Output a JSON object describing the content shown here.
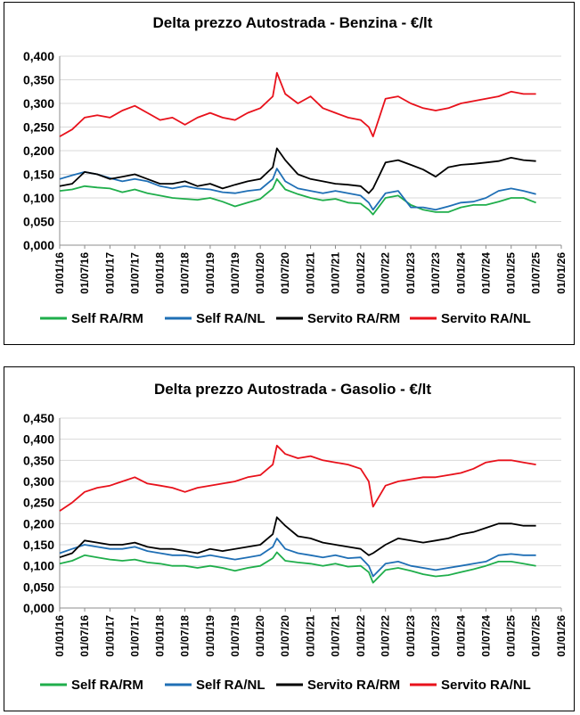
{
  "chart_data": [
    {
      "type": "line",
      "title": "Delta prezzo Autostrada - Benzina - €/lt",
      "xlabel": "",
      "ylabel": "",
      "ylim": [
        0,
        0.4
      ],
      "yticks": [
        "0,000",
        "0,050",
        "0,100",
        "0,150",
        "0,200",
        "0,250",
        "0,300",
        "0,350",
        "0,400"
      ],
      "xticks": [
        "01/01/16",
        "01/07/16",
        "01/01/17",
        "01/07/17",
        "01/01/18",
        "01/07/18",
        "01/01/19",
        "01/07/19",
        "01/01/20",
        "01/07/20",
        "01/01/21",
        "01/07/21",
        "01/01/22",
        "01/07/22",
        "01/01/23",
        "01/07/23",
        "01/01/24",
        "01/07/24",
        "01/01/25",
        "01/07/25",
        "01/01/26"
      ],
      "xlim": [
        "01/01/16",
        "01/01/26"
      ],
      "grid": "horizontal",
      "legend_position": "bottom",
      "x": [
        "01/01/16",
        "01/04/16",
        "01/07/16",
        "01/10/16",
        "01/01/17",
        "01/04/17",
        "01/07/17",
        "01/10/17",
        "01/01/18",
        "01/04/18",
        "01/07/18",
        "01/10/18",
        "01/01/19",
        "01/04/19",
        "01/07/19",
        "01/10/19",
        "01/01/20",
        "01/04/20",
        "01/05/20",
        "01/07/20",
        "01/10/20",
        "01/01/21",
        "01/04/21",
        "01/07/21",
        "01/10/21",
        "01/01/22",
        "01/03/22",
        "01/04/22",
        "01/07/22",
        "01/10/22",
        "01/01/23",
        "01/04/23",
        "01/07/23",
        "01/10/23",
        "01/01/24",
        "01/04/24",
        "01/07/24",
        "01/10/24",
        "01/01/25",
        "01/04/25",
        "01/07/25"
      ],
      "series": [
        {
          "name": "Self RA/RM",
          "color": "#1fae4b",
          "values": [
            0.115,
            0.118,
            0.125,
            0.122,
            0.12,
            0.112,
            0.118,
            0.11,
            0.105,
            0.1,
            0.098,
            0.096,
            0.1,
            0.092,
            0.082,
            0.09,
            0.098,
            0.12,
            0.14,
            0.118,
            0.108,
            0.1,
            0.095,
            0.098,
            0.09,
            0.088,
            0.075,
            0.065,
            0.1,
            0.105,
            0.085,
            0.075,
            0.07,
            0.07,
            0.08,
            0.085,
            0.085,
            0.092,
            0.1,
            0.1,
            0.09
          ]
        },
        {
          "name": "Self RA/NL",
          "color": "#1f6fb5",
          "values": [
            0.14,
            0.148,
            0.155,
            0.15,
            0.142,
            0.135,
            0.14,
            0.135,
            0.125,
            0.12,
            0.125,
            0.12,
            0.118,
            0.112,
            0.11,
            0.115,
            0.118,
            0.14,
            0.162,
            0.135,
            0.12,
            0.115,
            0.11,
            0.115,
            0.11,
            0.105,
            0.09,
            0.075,
            0.11,
            0.115,
            0.08,
            0.08,
            0.075,
            0.082,
            0.09,
            0.092,
            0.1,
            0.115,
            0.12,
            0.115,
            0.108
          ]
        },
        {
          "name": "Servito RA/RM",
          "color": "#000000",
          "values": [
            0.125,
            0.13,
            0.155,
            0.15,
            0.14,
            0.145,
            0.15,
            0.14,
            0.13,
            0.13,
            0.135,
            0.125,
            0.13,
            0.12,
            0.128,
            0.135,
            0.14,
            0.165,
            0.205,
            0.18,
            0.15,
            0.14,
            0.135,
            0.13,
            0.128,
            0.125,
            0.11,
            0.12,
            0.175,
            0.18,
            0.17,
            0.16,
            0.145,
            0.165,
            0.17,
            0.172,
            0.175,
            0.178,
            0.185,
            0.18,
            0.178
          ]
        },
        {
          "name": "Servito RA/NL",
          "color": "#e8111b",
          "values": [
            0.23,
            0.245,
            0.27,
            0.275,
            0.27,
            0.285,
            0.295,
            0.28,
            0.265,
            0.27,
            0.255,
            0.27,
            0.28,
            0.27,
            0.265,
            0.28,
            0.29,
            0.315,
            0.365,
            0.32,
            0.3,
            0.315,
            0.29,
            0.28,
            0.27,
            0.265,
            0.25,
            0.23,
            0.31,
            0.315,
            0.3,
            0.29,
            0.285,
            0.29,
            0.3,
            0.305,
            0.31,
            0.315,
            0.325,
            0.32,
            0.32
          ]
        }
      ]
    },
    {
      "type": "line",
      "title": "Delta prezzo Autostrada - Gasolio - €/lt",
      "xlabel": "",
      "ylabel": "",
      "ylim": [
        0,
        0.45
      ],
      "yticks": [
        "0,000",
        "0,050",
        "0,100",
        "0,150",
        "0,200",
        "0,250",
        "0,300",
        "0,350",
        "0,400",
        "0,450"
      ],
      "xticks": [
        "01/01/16",
        "01/07/16",
        "01/01/17",
        "01/07/17",
        "01/01/18",
        "01/07/18",
        "01/01/19",
        "01/07/19",
        "01/01/20",
        "01/07/20",
        "01/01/21",
        "01/07/21",
        "01/01/22",
        "01/07/22",
        "01/01/23",
        "01/07/23",
        "01/01/24",
        "01/07/24",
        "01/01/25",
        "01/07/25",
        "01/01/26"
      ],
      "xlim": [
        "01/01/16",
        "01/01/26"
      ],
      "grid": "horizontal",
      "legend_position": "bottom",
      "x": [
        "01/01/16",
        "01/04/16",
        "01/07/16",
        "01/10/16",
        "01/01/17",
        "01/04/17",
        "01/07/17",
        "01/10/17",
        "01/01/18",
        "01/04/18",
        "01/07/18",
        "01/10/18",
        "01/01/19",
        "01/04/19",
        "01/07/19",
        "01/10/19",
        "01/01/20",
        "01/04/20",
        "01/05/20",
        "01/07/20",
        "01/10/20",
        "01/01/21",
        "01/04/21",
        "01/07/21",
        "01/10/21",
        "01/01/22",
        "01/03/22",
        "01/04/22",
        "01/07/22",
        "01/10/22",
        "01/01/23",
        "01/04/23",
        "01/07/23",
        "01/10/23",
        "01/01/24",
        "01/04/24",
        "01/07/24",
        "01/10/24",
        "01/01/25",
        "01/04/25",
        "01/07/25"
      ],
      "series": [
        {
          "name": "Self RA/RM",
          "color": "#1fae4b",
          "values": [
            0.105,
            0.112,
            0.125,
            0.12,
            0.115,
            0.112,
            0.115,
            0.108,
            0.105,
            0.1,
            0.1,
            0.095,
            0.1,
            0.095,
            0.088,
            0.095,
            0.1,
            0.118,
            0.132,
            0.112,
            0.108,
            0.105,
            0.1,
            0.105,
            0.098,
            0.1,
            0.085,
            0.06,
            0.09,
            0.095,
            0.088,
            0.08,
            0.075,
            0.078,
            0.085,
            0.092,
            0.1,
            0.11,
            0.11,
            0.105,
            0.1
          ]
        },
        {
          "name": "Self RA/NL",
          "color": "#1f6fb5",
          "values": [
            0.13,
            0.14,
            0.15,
            0.145,
            0.14,
            0.14,
            0.145,
            0.135,
            0.13,
            0.125,
            0.125,
            0.12,
            0.125,
            0.12,
            0.115,
            0.12,
            0.125,
            0.145,
            0.165,
            0.14,
            0.13,
            0.125,
            0.12,
            0.125,
            0.118,
            0.12,
            0.1,
            0.075,
            0.105,
            0.11,
            0.1,
            0.095,
            0.09,
            0.095,
            0.1,
            0.105,
            0.11,
            0.125,
            0.128,
            0.125,
            0.125
          ]
        },
        {
          "name": "Servito RA/RM",
          "color": "#000000",
          "values": [
            0.12,
            0.13,
            0.16,
            0.155,
            0.15,
            0.15,
            0.155,
            0.145,
            0.14,
            0.14,
            0.135,
            0.13,
            0.14,
            0.135,
            0.14,
            0.145,
            0.15,
            0.175,
            0.215,
            0.195,
            0.17,
            0.165,
            0.155,
            0.15,
            0.145,
            0.14,
            0.125,
            0.13,
            0.15,
            0.165,
            0.16,
            0.155,
            0.16,
            0.165,
            0.175,
            0.18,
            0.19,
            0.2,
            0.2,
            0.195,
            0.195
          ]
        },
        {
          "name": "Servito RA/NL",
          "color": "#e8111b",
          "values": [
            0.23,
            0.25,
            0.275,
            0.285,
            0.29,
            0.3,
            0.31,
            0.295,
            0.29,
            0.285,
            0.275,
            0.285,
            0.29,
            0.295,
            0.3,
            0.31,
            0.315,
            0.34,
            0.385,
            0.365,
            0.355,
            0.36,
            0.35,
            0.345,
            0.34,
            0.33,
            0.3,
            0.24,
            0.29,
            0.3,
            0.305,
            0.31,
            0.31,
            0.315,
            0.32,
            0.33,
            0.345,
            0.35,
            0.35,
            0.345,
            0.34
          ]
        }
      ]
    }
  ]
}
